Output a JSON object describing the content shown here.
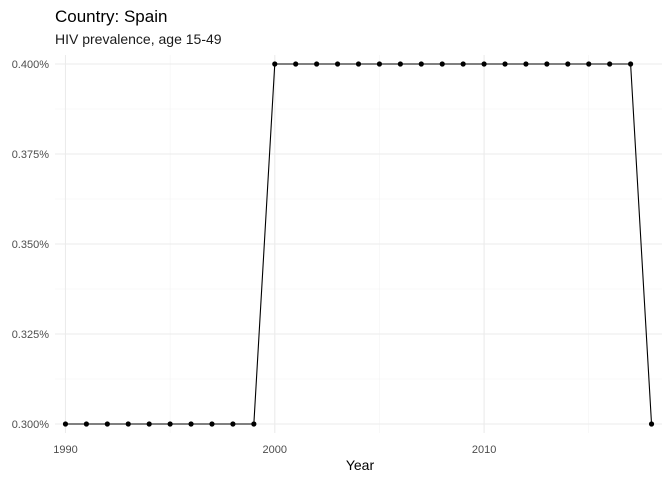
{
  "chart_data": {
    "type": "line",
    "title": "Country: Spain",
    "subtitle": "HIV prevalence, age 15-49",
    "xlabel": "Year",
    "ylabel": "",
    "xlim": [
      1989.5,
      2018.5
    ],
    "ylim": [
      0.2975,
      0.4025
    ],
    "x_ticks": [
      1990,
      2000,
      2010
    ],
    "y_ticks": [
      0.3,
      0.325,
      0.35,
      0.375,
      0.4
    ],
    "y_tick_labels": [
      "0.300%",
      "0.325%",
      "0.350%",
      "0.375%",
      "0.400%"
    ],
    "grid": true,
    "series": [
      {
        "x": [
          1990,
          1991,
          1992,
          1993,
          1994,
          1995,
          1996,
          1997,
          1998,
          1999,
          2000,
          2001,
          2002,
          2003,
          2004,
          2005,
          2006,
          2007,
          2008,
          2009,
          2010,
          2011,
          2012,
          2013,
          2014,
          2015,
          2016,
          2017,
          2018
        ],
        "values": [
          0.3,
          0.3,
          0.3,
          0.3,
          0.3,
          0.3,
          0.3,
          0.3,
          0.3,
          0.3,
          0.4,
          0.4,
          0.4,
          0.4,
          0.4,
          0.4,
          0.4,
          0.4,
          0.4,
          0.4,
          0.4,
          0.4,
          0.4,
          0.4,
          0.4,
          0.4,
          0.4,
          0.4,
          0.3
        ]
      }
    ],
    "colors": {
      "line": "#000000",
      "point": "#000000"
    }
  }
}
